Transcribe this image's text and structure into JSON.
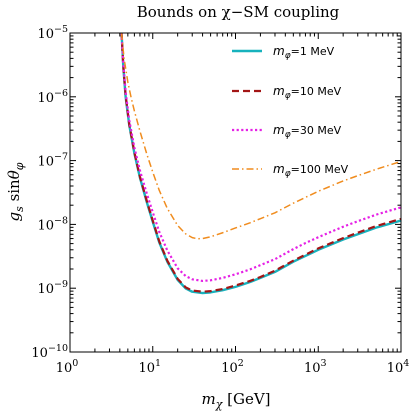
{
  "chart_data": {
    "type": "line",
    "title": "Bounds on χ−SM coupling",
    "xlabel": "m_χ [GeV]",
    "ylabel": "g_s sinθ_φ",
    "x_scale": "log",
    "y_scale": "log",
    "xlim": [
      1,
      10000
    ],
    "ylim": [
      1e-10,
      1e-05
    ],
    "x_ticks": [
      {
        "value": 1,
        "base": "10",
        "exp": "0"
      },
      {
        "value": 10,
        "base": "10",
        "exp": "1"
      },
      {
        "value": 100,
        "base": "10",
        "exp": "2"
      },
      {
        "value": 1000,
        "base": "10",
        "exp": "3"
      },
      {
        "value": 10000,
        "base": "10",
        "exp": "4"
      }
    ],
    "y_ticks": [
      {
        "value": 1e-10,
        "base": "10",
        "exp": "−10"
      },
      {
        "value": 1e-09,
        "base": "10",
        "exp": "−9"
      },
      {
        "value": 1e-08,
        "base": "10",
        "exp": "−8"
      },
      {
        "value": 1e-07,
        "base": "10",
        "exp": "−7"
      },
      {
        "value": 1e-06,
        "base": "10",
        "exp": "−6"
      },
      {
        "value": 1e-05,
        "base": "10",
        "exp": "−5"
      }
    ],
    "legend_position": "top-right",
    "grid": false,
    "series": [
      {
        "name": "=1 MeV",
        "label_symbol": "m",
        "label_sub": "φ",
        "color": "#17b2bd",
        "style": "solid",
        "x": [
          4.2,
          4.4,
          4.7,
          5.2,
          6,
          7,
          8.5,
          10,
          12,
          15,
          20,
          25,
          30,
          40,
          50,
          70,
          100,
          150,
          200,
          300,
          500,
          700,
          1000,
          2000,
          3000,
          5000,
          10000
        ],
        "y": [
          1e-05,
          3e-06,
          1e-06,
          3.6e-07,
          1.3e-07,
          5.4e-08,
          2.2e-08,
          1.1e-08,
          5.2e-09,
          2.6e-09,
          1.35e-09,
          9.9e-10,
          8.8e-10,
          8.4e-10,
          8.6e-10,
          9.3e-10,
          1.05e-09,
          1.25e-09,
          1.45e-09,
          1.8e-09,
          2.6e-09,
          3.2e-09,
          4e-09,
          5.8e-09,
          7e-09,
          8.9e-09,
          1.15e-08
        ]
      },
      {
        "name": "=10 MeV",
        "label_symbol": "m",
        "label_sub": "φ",
        "color": "#a31515",
        "style": "dashed",
        "x": [
          4.2,
          4.4,
          4.7,
          5.2,
          6,
          7,
          8.5,
          10,
          12,
          15,
          20,
          25,
          30,
          40,
          50,
          70,
          100,
          150,
          200,
          300,
          500,
          700,
          1000,
          2000,
          3000,
          5000,
          10000
        ],
        "y": [
          1e-05,
          3.1e-06,
          1.05e-06,
          3.7e-07,
          1.35e-07,
          5.6e-08,
          2.3e-08,
          1.15e-08,
          5.4e-09,
          2.7e-09,
          1.4e-09,
          1.03e-09,
          9.2e-10,
          8.8e-10,
          9e-10,
          9.7e-10,
          1.1e-09,
          1.3e-09,
          1.5e-09,
          1.88e-09,
          2.7e-09,
          3.35e-09,
          4.2e-09,
          6.1e-09,
          7.4e-09,
          9.4e-09,
          1.22e-08
        ]
      },
      {
        "name": "=30 MeV",
        "label_symbol": "m",
        "label_sub": "φ",
        "color": "#e521e5",
        "style": "dotted",
        "x": [
          4.2,
          4.4,
          4.7,
          5.2,
          6,
          7,
          8.5,
          10,
          12,
          15,
          20,
          25,
          30,
          40,
          50,
          70,
          100,
          150,
          200,
          300,
          500,
          700,
          1000,
          2000,
          3000,
          5000,
          10000
        ],
        "y": [
          1e-05,
          3.4e-06,
          1.2e-06,
          4.3e-07,
          1.6e-07,
          7e-08,
          3e-08,
          1.55e-08,
          7.6e-09,
          3.9e-09,
          2.05e-09,
          1.55e-09,
          1.38e-09,
          1.3e-09,
          1.33e-09,
          1.45e-09,
          1.65e-09,
          1.97e-09,
          2.3e-09,
          2.85e-09,
          4.1e-09,
          5.1e-09,
          6.3e-09,
          9.2e-09,
          1.12e-08,
          1.42e-08,
          1.85e-08
        ]
      },
      {
        "name": "=100 MeV",
        "label_symbol": "m",
        "label_sub": "φ",
        "color": "#f08c1e",
        "style": "dashdot",
        "x": [
          4.2,
          4.5,
          5,
          5.5,
          6,
          7,
          8.5,
          10,
          12,
          15,
          20,
          25,
          30,
          35,
          40,
          50,
          70,
          100,
          150,
          200,
          300,
          500,
          700,
          1000,
          2000,
          3000,
          5000,
          10000
        ],
        "y": [
          1e-05,
          4e-06,
          1.7e-06,
          9.5e-07,
          6e-07,
          2.9e-07,
          1.25e-07,
          6.6e-08,
          3.4e-08,
          1.78e-08,
          9.6e-09,
          7.1e-09,
          6.2e-09,
          5.95e-09,
          6e-09,
          6.4e-09,
          7.4e-09,
          8.8e-09,
          1.06e-08,
          1.23e-08,
          1.52e-08,
          2.15e-08,
          2.65e-08,
          3.3e-08,
          4.8e-08,
          5.8e-08,
          7.3e-08,
          9.7e-08
        ]
      }
    ]
  }
}
